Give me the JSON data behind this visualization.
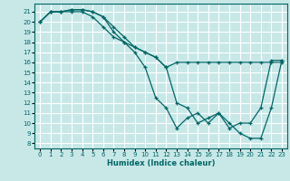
{
  "xlabel": "Humidex (Indice chaleur)",
  "bg_color": "#c8e8e8",
  "grid_color": "#ffffff",
  "line_color": "#006666",
  "xlim": [
    -0.5,
    23.5
  ],
  "ylim": [
    7.5,
    21.8
  ],
  "xticks": [
    0,
    1,
    2,
    3,
    4,
    5,
    6,
    7,
    8,
    9,
    10,
    11,
    12,
    13,
    14,
    15,
    16,
    17,
    18,
    19,
    20,
    21,
    22,
    23
  ],
  "yticks": [
    8,
    9,
    10,
    11,
    12,
    13,
    14,
    15,
    16,
    17,
    18,
    19,
    20,
    21
  ],
  "line1_x": [
    0,
    1,
    2,
    3,
    4,
    5,
    6,
    7,
    8,
    9,
    10,
    11,
    12,
    13,
    14,
    15,
    16,
    17,
    18,
    19,
    20,
    21,
    22,
    23
  ],
  "line1_y": [
    20,
    21,
    21,
    21.2,
    21.2,
    21,
    20.5,
    19.5,
    18.5,
    17.5,
    17,
    16.5,
    15.5,
    16,
    16,
    16,
    16,
    16,
    16,
    16,
    16,
    16,
    16,
    16
  ],
  "line2_x": [
    0,
    1,
    2,
    3,
    4,
    5,
    6,
    7,
    8,
    9,
    10,
    11,
    12,
    13,
    14,
    15,
    16,
    17,
    18,
    19,
    20,
    21,
    22,
    23
  ],
  "line2_y": [
    20,
    21,
    21,
    21.2,
    21.2,
    21,
    20.5,
    19,
    18,
    17,
    15.5,
    12.5,
    11.5,
    9.5,
    10.5,
    11,
    10,
    11,
    10,
    9,
    8.5,
    8.5,
    11.5,
    16.2
  ],
  "line3_x": [
    0,
    1,
    2,
    3,
    4,
    5,
    6,
    7,
    8,
    9,
    10,
    11,
    12,
    13,
    14,
    15,
    16,
    17,
    18,
    19,
    20,
    21,
    22,
    23
  ],
  "line3_y": [
    20,
    21,
    21,
    21,
    21,
    20.5,
    19.5,
    18.5,
    18,
    17.5,
    17,
    16.5,
    15.5,
    12,
    11.5,
    10,
    10.5,
    11,
    9.5,
    10,
    10,
    11.5,
    16.2,
    16.2
  ]
}
